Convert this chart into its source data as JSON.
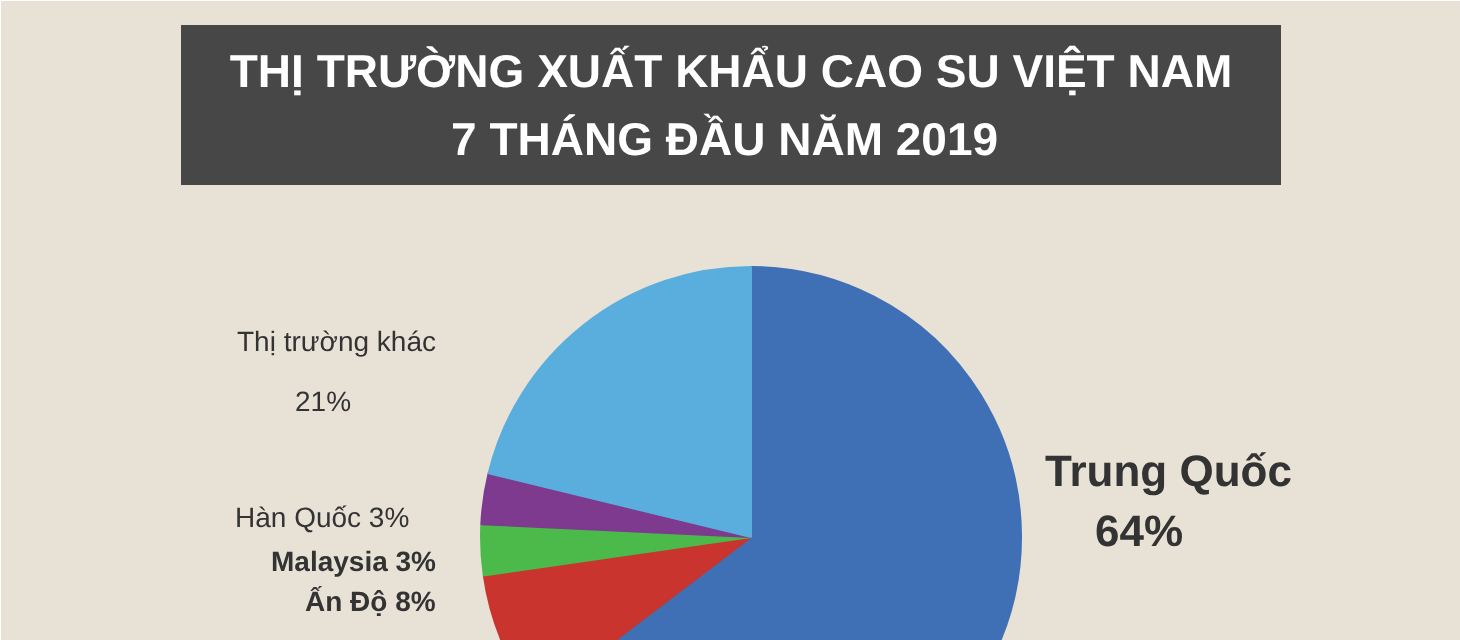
{
  "chart_data": {
    "type": "pie",
    "title": "THỊ TRƯỜNG XUẤT KHẨU CAO SU VIỆT NAM\n7 THÁNG ĐẦU NĂM  2019",
    "categories": [
      "Trung Quốc",
      "Ấn Độ",
      "Malaysia",
      "Hàn Quốc",
      "Thị trường khác"
    ],
    "values": [
      64,
      8,
      3,
      3,
      21
    ],
    "value_labels": [
      "64%",
      "8%",
      "3%",
      "3%",
      "21%"
    ],
    "colors": [
      "#3f70b5",
      "#c9342e",
      "#4cba4a",
      "#7d3a8e",
      "#5aaede"
    ]
  }
}
